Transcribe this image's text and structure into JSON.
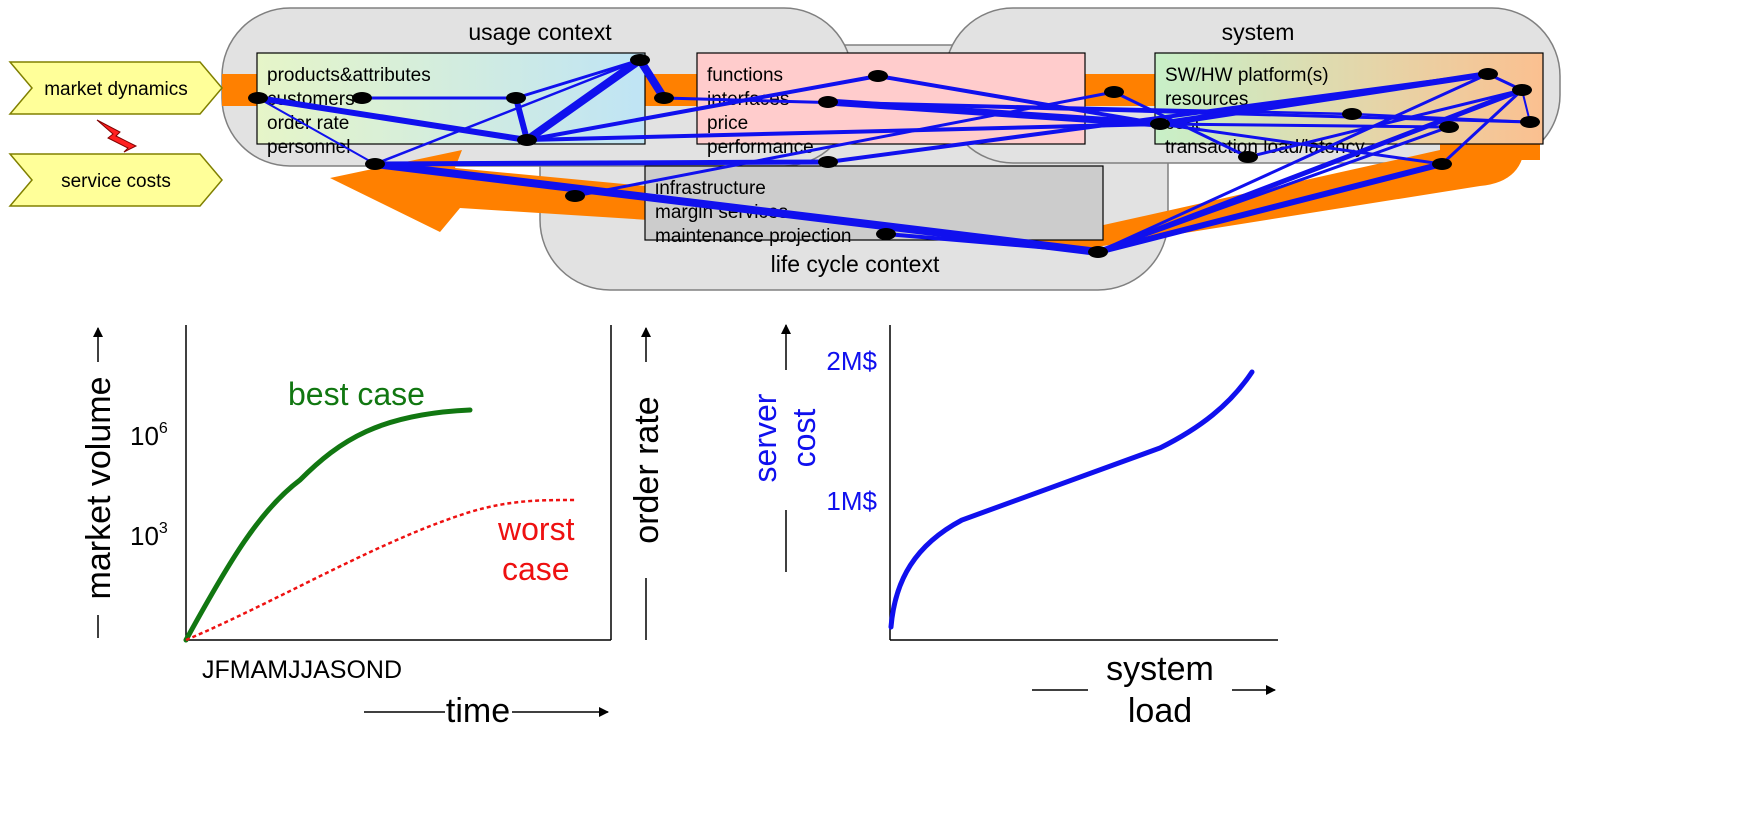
{
  "diagram": {
    "drivers": [
      {
        "label": "market dynamics"
      },
      {
        "label": "service costs"
      }
    ],
    "contexts": {
      "usage": "usage context",
      "system": "system",
      "lifecycle": "life cycle context"
    },
    "boxes": {
      "usage": [
        "products&attributes",
        "customers",
        "order rate",
        "personnel"
      ],
      "functions": [
        "functions",
        "interfaces",
        "price",
        "performance"
      ],
      "system": [
        "SW/HW platform(s)",
        "resources",
        "cost",
        "transaction load/latency"
      ],
      "lifecycle": [
        "infrastructure",
        "margin services",
        "maintenance projection"
      ]
    },
    "colors": {
      "usage_box": "#e6f5c8",
      "usage_box_end": "#bfe4f5",
      "functions_box": "#ffcccc",
      "system_box": "#c8f0c8",
      "system_box_end": "#fbc090",
      "lifecycle_box": "#cccccc",
      "context_fill": "#e2e2e2",
      "driver_fill": "#ffff99",
      "arrow": "#ff8000",
      "links": "#1010ee",
      "conflict": "#ff2020"
    }
  },
  "chart_data": [
    {
      "type": "line",
      "title": "",
      "xlabel": "time",
      "ylabel": "market volume",
      "x_tick_label": "JFMAMJJASOND",
      "y_ticks": [
        {
          "base": "10",
          "exp": "6"
        },
        {
          "base": "10",
          "exp": "3"
        }
      ],
      "series": [
        {
          "name": "best case",
          "color": "#117711",
          "style": "solid"
        },
        {
          "name": "worst",
          "name_line2": "case",
          "color": "#ee1111",
          "style": "dotted"
        }
      ]
    },
    {
      "type": "line",
      "title": "",
      "ylabel": "order rate"
    },
    {
      "type": "line",
      "title": "",
      "xlabel_line1": "system",
      "xlabel_line2": "load",
      "ylabel_line1": "server",
      "ylabel_line2": "cost",
      "y_ticks": [
        "2M$",
        "1M$"
      ],
      "series": [
        {
          "color": "#1010ee",
          "style": "solid"
        }
      ]
    }
  ]
}
